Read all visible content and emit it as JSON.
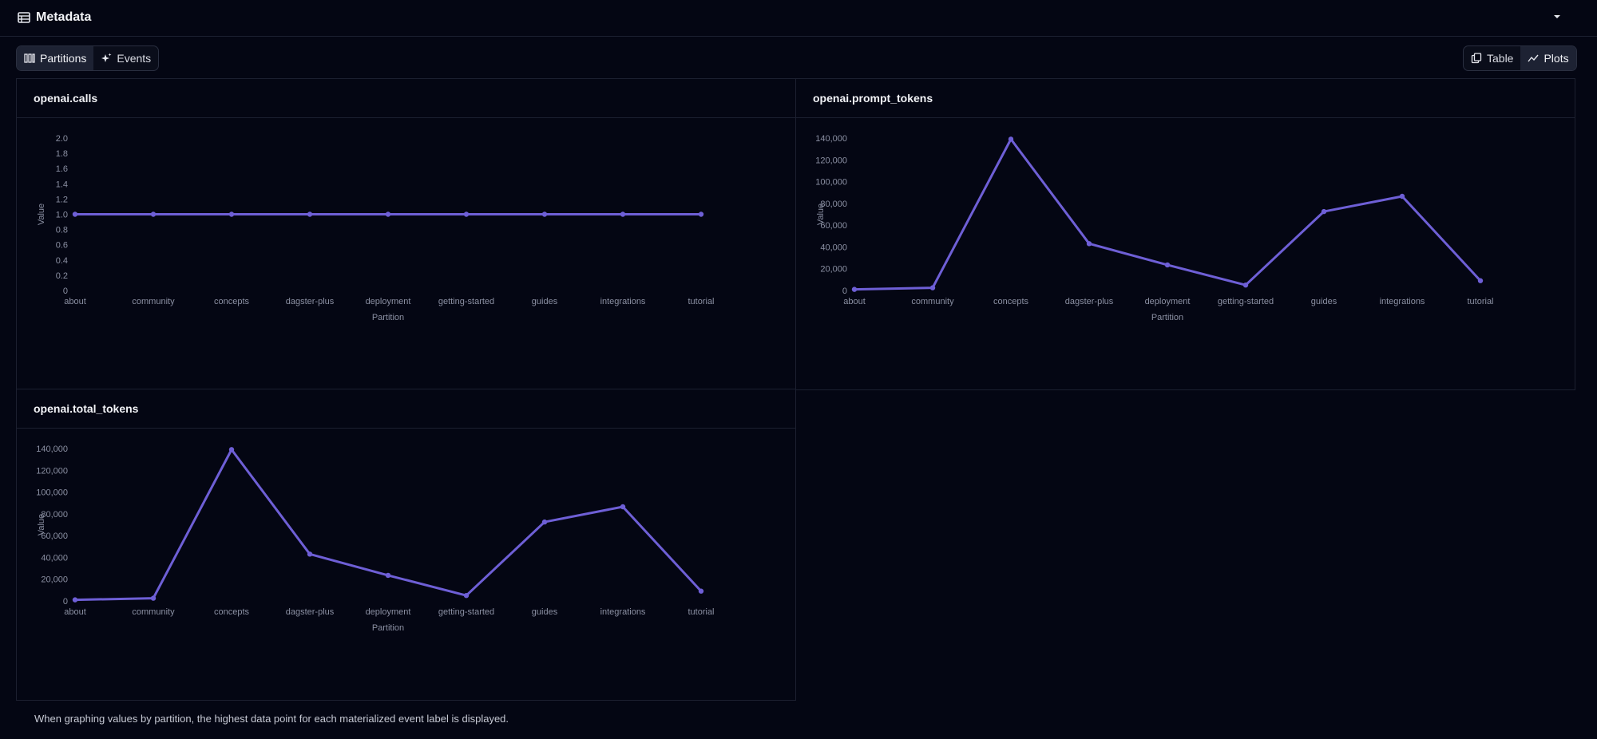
{
  "section": {
    "title": "Metadata",
    "icon": "table-list-icon",
    "caret_icon": "caret-down-icon"
  },
  "tabs": [
    {
      "label": "Partitions",
      "icon": "partitions-icon",
      "active": true
    },
    {
      "label": "Events",
      "icon": "sparkle-icon",
      "active": false
    }
  ],
  "view_toggle": [
    {
      "label": "Table",
      "icon": "table-icon",
      "active": false
    },
    {
      "label": "Plots",
      "icon": "plot-icon",
      "active": true
    }
  ],
  "colors": {
    "line": "#6e5fd6",
    "grid": "#1c2030",
    "background": "#040613"
  },
  "panels": [
    {
      "title": "openai.calls"
    },
    {
      "title": "openai.prompt_tokens"
    },
    {
      "title": "openai.total_tokens"
    }
  ],
  "chart_data": [
    {
      "type": "line",
      "title": "openai.calls",
      "xlabel": "Partition",
      "ylabel": "Value",
      "categories": [
        "about",
        "community",
        "concepts",
        "dagster-plus",
        "deployment",
        "getting-started",
        "guides",
        "integrations",
        "tutorial"
      ],
      "values": [
        1,
        1,
        1,
        1,
        1,
        1,
        1,
        1,
        1
      ],
      "ylim": [
        0,
        2.0
      ],
      "yticks": [
        "0",
        "0.2",
        "0.4",
        "0.6",
        "0.8",
        "1.0",
        "1.2",
        "1.4",
        "1.6",
        "1.8",
        "2.0"
      ],
      "grid": false
    },
    {
      "type": "line",
      "title": "openai.prompt_tokens",
      "xlabel": "Partition",
      "ylabel": "Value",
      "categories": [
        "about",
        "community",
        "concepts",
        "dagster-plus",
        "deployment",
        "getting-started",
        "guides",
        "integrations",
        "tutorial"
      ],
      "values": [
        1000,
        2500,
        139000,
        43000,
        23500,
        5000,
        72500,
        86500,
        9000
      ],
      "ylim": [
        0,
        140000
      ],
      "yticks": [
        "0",
        "20,000",
        "40,000",
        "60,000",
        "80,000",
        "100,000",
        "120,000",
        "140,000"
      ],
      "grid": false
    },
    {
      "type": "line",
      "title": "openai.total_tokens",
      "xlabel": "Partition",
      "ylabel": "Value",
      "categories": [
        "about",
        "community",
        "concepts",
        "dagster-plus",
        "deployment",
        "getting-started",
        "guides",
        "integrations",
        "tutorial"
      ],
      "values": [
        1000,
        2500,
        139000,
        43000,
        23500,
        5000,
        72500,
        86500,
        9000
      ],
      "ylim": [
        0,
        140000
      ],
      "yticks": [
        "0",
        "20,000",
        "40,000",
        "60,000",
        "80,000",
        "100,000",
        "120,000",
        "140,000"
      ],
      "grid": false
    }
  ],
  "footer": {
    "note": "When graphing values by partition, the highest data point for each materialized event label is displayed."
  }
}
